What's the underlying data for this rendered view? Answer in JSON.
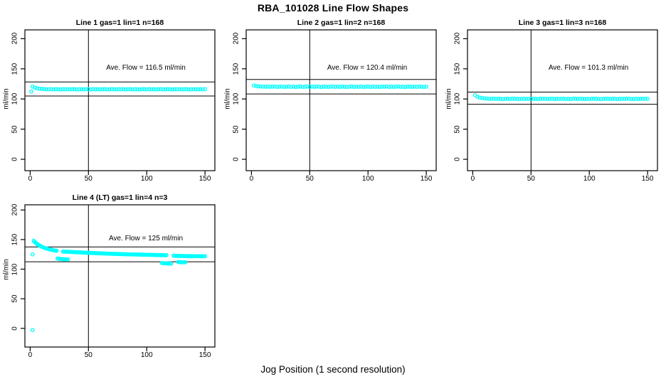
{
  "title": "RBA_101028  Line Flow Shapes",
  "xlabel": "Jog Position (1 second resolution)",
  "ylabel": "ml/min",
  "point_color": "#00ffff",
  "line_color": "#000000",
  "chart_data": [
    {
      "type": "scatter",
      "title": "Line 1 gas=1 lin=1 n=168",
      "annotation": "Ave. Flow =  116.5  ml/min",
      "ave_flow": 116.5,
      "xlim": [
        0,
        150
      ],
      "ylim": [
        0,
        200
      ],
      "xticks": [
        0,
        50,
        100,
        150
      ],
      "yticks": [
        0,
        50,
        100,
        150,
        200
      ],
      "vline_x": 50,
      "hlines": [
        128.2,
        104.9
      ],
      "segments": [
        {
          "x_start": 2,
          "x_step": 2,
          "y": [
            120.6,
            118.9,
            117.7,
            117.1,
            116.7,
            116.4,
            116.2,
            116.0,
            116.4,
            115.9,
            116.3,
            116.1,
            115.8,
            116.2,
            116.0,
            116.4,
            115.9,
            116.1,
            116.3,
            115.8,
            116.0,
            116.2,
            115.9,
            116.4,
            116.1,
            115.8,
            116.3,
            116.0,
            116.2,
            115.9,
            116.1,
            116.4,
            115.8,
            116.0,
            116.3,
            116.1,
            115.9,
            116.2,
            116.0,
            116.4,
            115.8,
            116.1,
            116.3,
            115.9,
            116.2,
            116.0,
            115.8,
            116.4,
            116.1,
            115.9,
            116.3,
            116.0,
            116.2,
            115.8,
            116.1,
            116.4,
            115.9,
            116.0,
            116.3,
            116.2,
            115.8,
            116.1,
            116.0,
            116.4,
            115.9,
            116.2,
            116.3,
            115.8,
            116.0,
            116.1,
            116.2,
            115.9,
            116.4,
            116.0,
            116.1
          ]
        }
      ],
      "extra_points": [
        [
          1,
          112.5
        ]
      ]
    },
    {
      "type": "scatter",
      "title": "Line 2 gas=1 lin=2 n=168",
      "annotation": "Ave. Flow =  120.4  ml/min",
      "ave_flow": 120.4,
      "xlim": [
        0,
        150
      ],
      "ylim": [
        0,
        200
      ],
      "xticks": [
        0,
        50,
        100,
        150
      ],
      "yticks": [
        0,
        50,
        100,
        150,
        200
      ],
      "vline_x": 50,
      "hlines": [
        132.4,
        108.4
      ],
      "segments": [
        {
          "x_start": 2,
          "x_step": 2,
          "y": [
            122.4,
            121.5,
            121.0,
            120.7,
            120.5,
            120.3,
            120.6,
            120.2,
            120.5,
            120.8,
            120.1,
            120.4,
            120.6,
            120.0,
            120.3,
            120.7,
            120.2,
            120.5,
            119.9,
            120.4,
            120.6,
            120.1,
            120.3,
            120.8,
            120.0,
            120.5,
            120.2,
            120.7,
            120.4,
            119.9,
            120.6,
            120.3,
            120.1,
            120.5,
            120.8,
            120.2,
            120.4,
            120.0,
            120.6,
            120.3,
            119.9,
            120.5,
            120.7,
            120.1,
            120.4,
            120.2,
            120.6,
            120.0,
            120.3,
            120.8,
            120.1,
            120.5,
            120.2,
            120.4,
            119.9,
            120.6,
            120.3,
            120.7,
            120.0,
            120.4,
            120.1,
            120.5,
            120.8,
            120.2,
            120.3,
            119.9,
            120.6,
            120.4,
            120.0,
            120.5,
            120.2,
            120.7,
            120.3,
            120.1,
            120.4
          ]
        }
      ],
      "extra_points": []
    },
    {
      "type": "scatter",
      "title": "Line 3 gas=1 lin=3 n=168",
      "annotation": "Ave. Flow =  101.3  ml/min",
      "ave_flow": 101.3,
      "xlim": [
        0,
        150
      ],
      "ylim": [
        0,
        200
      ],
      "xticks": [
        0,
        50,
        100,
        150
      ],
      "yticks": [
        0,
        50,
        100,
        150,
        200
      ],
      "vline_x": 50,
      "hlines": [
        111.4,
        91.2
      ],
      "segments": [
        {
          "x_start": 2,
          "x_step": 2,
          "y": [
            106.2,
            103.8,
            102.4,
            101.6,
            101.0,
            100.7,
            100.5,
            100.3,
            100.6,
            100.1,
            100.4,
            100.2,
            99.9,
            100.5,
            100.3,
            100.0,
            100.6,
            100.2,
            100.4,
            99.8,
            100.3,
            100.5,
            100.1,
            100.4,
            100.0,
            100.6,
            100.2,
            99.9,
            100.4,
            100.3,
            100.5,
            100.0,
            100.2,
            100.6,
            99.9,
            100.3,
            100.1,
            100.5,
            100.4,
            100.0,
            100.2,
            99.8,
            100.6,
            100.3,
            100.1,
            100.4,
            100.5,
            99.9,
            100.2,
            100.0,
            100.6,
            100.3,
            100.4,
            100.1,
            99.8,
            100.5,
            100.2,
            100.6,
            100.0,
            100.3,
            100.4,
            99.9,
            100.1,
            100.5,
            100.2,
            100.3,
            100.6,
            100.0,
            99.8,
            100.4,
            100.1,
            100.5,
            100.3,
            100.2,
            100.4
          ]
        }
      ],
      "extra_points": []
    },
    {
      "type": "scatter",
      "title": "Line 4 (LT) gas=1 lin=4 n=3",
      "annotation": "Ave. Flow =  125  ml/min",
      "ave_flow": 125,
      "xlim": [
        0,
        150
      ],
      "ylim": [
        0,
        200
      ],
      "xticks": [
        0,
        50,
        100,
        150
      ],
      "yticks": [
        0,
        50,
        100,
        150,
        200
      ],
      "vline_x": 50,
      "hlines": [
        137.5,
        112.5
      ],
      "segments": [
        {
          "x_start": 3,
          "x_step": 0.7,
          "y": [
            148.0,
            146.5,
            145.1,
            143.9,
            142.8,
            141.8,
            140.9,
            140.1,
            139.3,
            138.6,
            137.9,
            137.3,
            136.7,
            136.2,
            135.7,
            135.2,
            134.8,
            134.4,
            134.0,
            133.6,
            133.3,
            133.0,
            132.7,
            132.4,
            132.1,
            131.8,
            131.6,
            131.3,
            131.1
          ]
        },
        {
          "x_start": 23.5,
          "x_step": 1,
          "y": [
            118.0,
            117.6,
            117.3,
            117.1,
            116.9,
            116.7,
            116.6,
            116.5,
            116.4,
            116.3
          ]
        },
        {
          "x_start": 28,
          "x_step": 1,
          "y": [
            129.8,
            129.7,
            129.5,
            129.6,
            129.3,
            129.4,
            129.1,
            129.2,
            129.0,
            128.8,
            128.9,
            128.6,
            128.7,
            128.4,
            128.5,
            128.2,
            128.3,
            128.0,
            128.1,
            127.8,
            127.9,
            127.7,
            127.6,
            127.7,
            127.4,
            127.5,
            127.2,
            127.3,
            127.0,
            127.1,
            126.9,
            126.8,
            126.9,
            126.6,
            126.7,
            126.5,
            126.4,
            126.5,
            126.2,
            126.3,
            126.1,
            126.0,
            126.1,
            125.9,
            125.8,
            125.9,
            125.7,
            125.6,
            125.7,
            125.5,
            125.4,
            125.5,
            125.3,
            125.2,
            125.3,
            125.1,
            125.0,
            125.1,
            124.9,
            125.0,
            124.8,
            124.9,
            124.7,
            124.8,
            124.6,
            124.7,
            124.5,
            124.6,
            124.4,
            124.5,
            124.3,
            124.4,
            124.2,
            124.3,
            124.1,
            124.2,
            124.0,
            124.1,
            123.9,
            124.0,
            123.8,
            123.9,
            123.7,
            123.8,
            123.6,
            123.7,
            123.5,
            123.6,
            123.4,
            123.5
          ]
        },
        {
          "x_start": 113,
          "x_step": 1,
          "y": [
            110.4,
            110.2,
            110.0,
            109.8,
            109.7,
            109.6,
            109.5,
            109.5,
            109.4
          ]
        },
        {
          "x_start": 127,
          "x_step": 1,
          "y": [
            112.0,
            111.9,
            111.8,
            111.7,
            111.6,
            111.5,
            111.5
          ]
        },
        {
          "x_start": 123,
          "x_step": 1,
          "y": [
            122.8,
            122.6,
            122.5,
            122.4,
            122.3,
            122.2,
            122.4,
            122.1,
            122.3,
            122.0,
            122.2,
            122.1,
            121.9,
            122.0,
            122.2,
            121.8,
            122.1,
            121.9,
            122.0,
            121.8,
            122.1,
            121.9,
            122.0,
            121.7,
            121.9,
            121.8,
            122.0,
            121.8
          ]
        }
      ],
      "extra_points": [
        [
          2,
          125
        ],
        [
          2,
          -3
        ]
      ]
    }
  ]
}
